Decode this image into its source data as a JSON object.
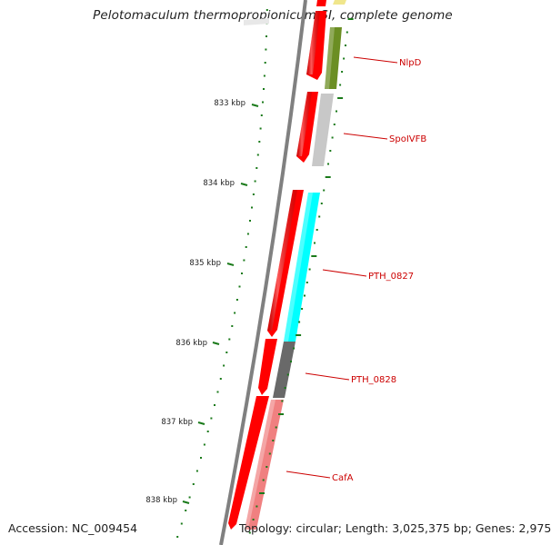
{
  "title": "Pelotomaculum thermopropionicum SI, complete genome",
  "footer": {
    "accession": "Accession: NC_009454",
    "topology": "Topology: circular; Length: 3,025,375 bp; Genes: 2,975"
  },
  "ticks": [
    {
      "label": "833 kbp"
    },
    {
      "label": "834 kbp"
    },
    {
      "label": "835 kbp"
    },
    {
      "label": "836 kbp"
    },
    {
      "label": "837 kbp"
    },
    {
      "label": "838 kbp"
    }
  ],
  "genes": [
    {
      "label": "NlpD",
      "color": "#6b8e23"
    },
    {
      "label": "SpoIVFB",
      "color": "#c8c8c8"
    },
    {
      "label": "PTH_0827",
      "color": "#00ffff"
    },
    {
      "label": "PTH_0828",
      "color": "#696969"
    },
    {
      "label": "CafA",
      "color": "#f08080"
    }
  ],
  "colors": {
    "strand": "#ff0000",
    "label": "#cc0000",
    "tick": "#1a7a1a",
    "backbone": "#808080",
    "top_feature": "#f0e68c"
  }
}
